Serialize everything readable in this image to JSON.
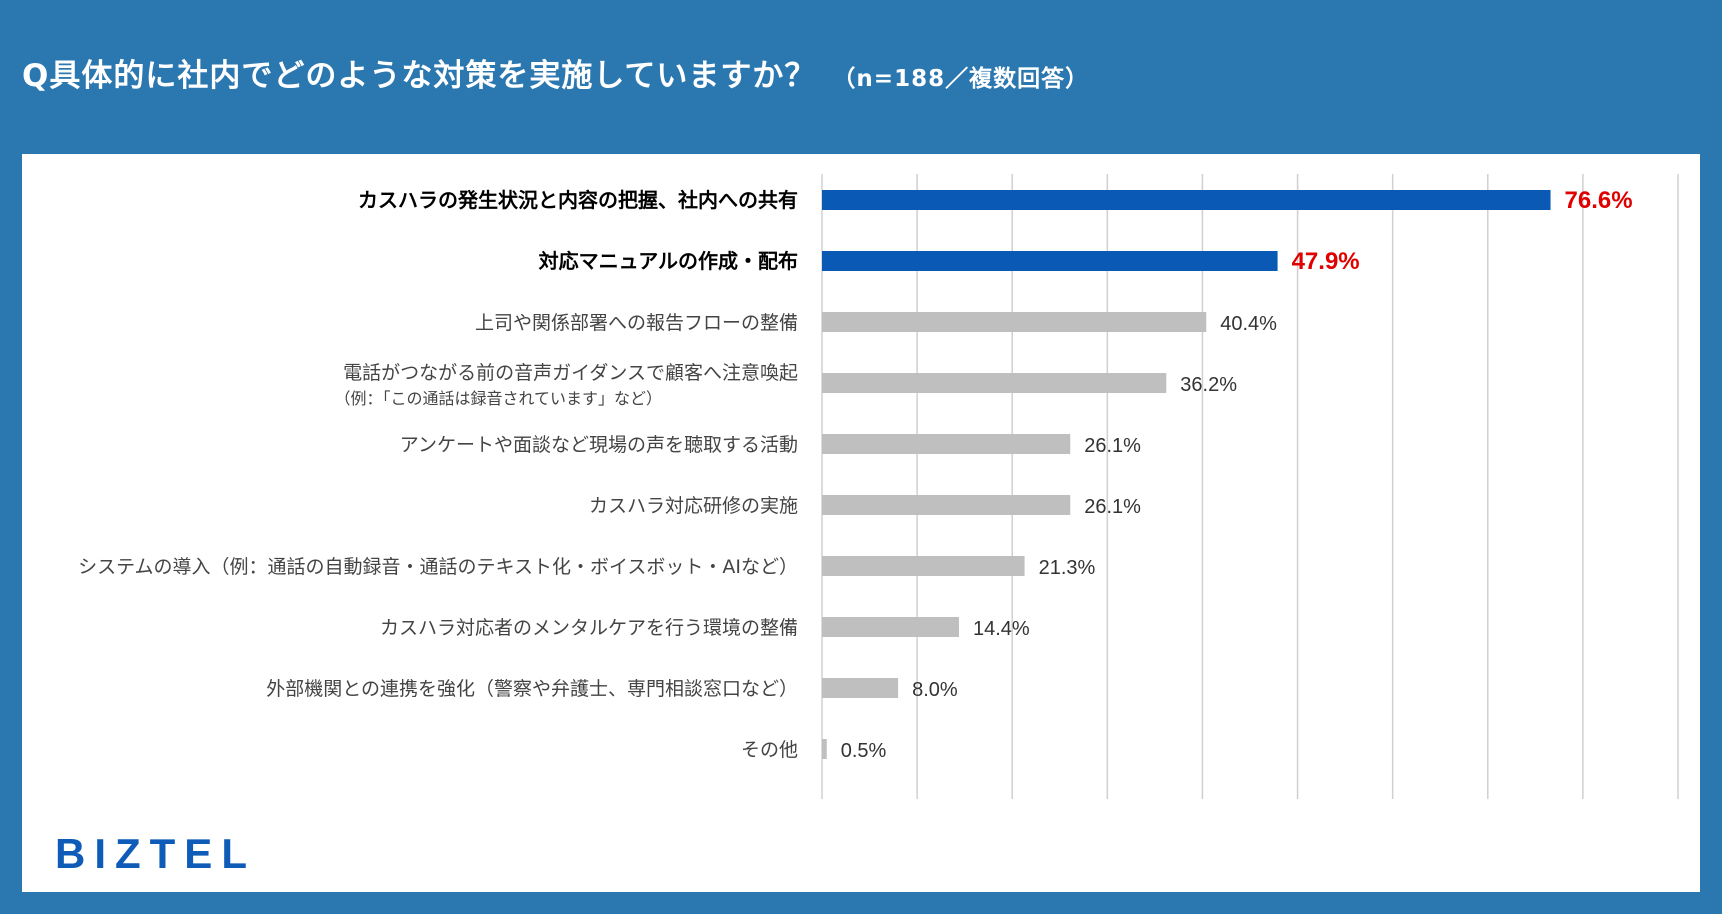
{
  "header": {
    "title": "Q具体的に社内でどのような対策を実施していますか？",
    "subtitle": "（n=188／複数回答）"
  },
  "logo": "BIZTEL",
  "colors": {
    "highlight_bar": "#0a5ab5",
    "normal_bar": "#bfbfbf",
    "highlight_value": "#e00000",
    "normal_value": "#333333",
    "grid": "#d0d0d0"
  },
  "chart_data": {
    "type": "bar",
    "orientation": "horizontal",
    "categories": [
      "カスハラの発生状況と内容の把握、社内への共有",
      "対応マニュアルの作成・配布",
      "上司や関係部署への報告フローの整備",
      "電話がつながる前の音声ガイダンスで顧客へ注意喚起",
      "アンケートや面談など現場の声を聴取する活動",
      "カスハラ対応研修の実施",
      "システムの導入（例：通話の自動録音・通話のテキスト化・ボイスボット・AIなど）",
      "カスハラ対応者のメンタルケアを行う環境の整備",
      "外部機関との連携を強化（警察や弁護士、専門相談窓口など）",
      "その他"
    ],
    "notes": [
      null,
      null,
      null,
      "（例：「この通話は録音されています」など）",
      null,
      null,
      null,
      null,
      null,
      null
    ],
    "values": [
      76.6,
      47.9,
      40.4,
      36.2,
      26.1,
      26.1,
      21.3,
      14.4,
      8.0,
      0.5
    ],
    "value_labels": [
      "76.6%",
      "47.9%",
      "40.4%",
      "36.2%",
      "26.1%",
      "26.1%",
      "21.3%",
      "14.4%",
      "8.0%",
      "0.5%"
    ],
    "highlighted": [
      true,
      true,
      false,
      false,
      false,
      false,
      false,
      false,
      false,
      false
    ],
    "xlim": [
      0,
      90
    ],
    "grid_step": 10,
    "unit": "%"
  }
}
